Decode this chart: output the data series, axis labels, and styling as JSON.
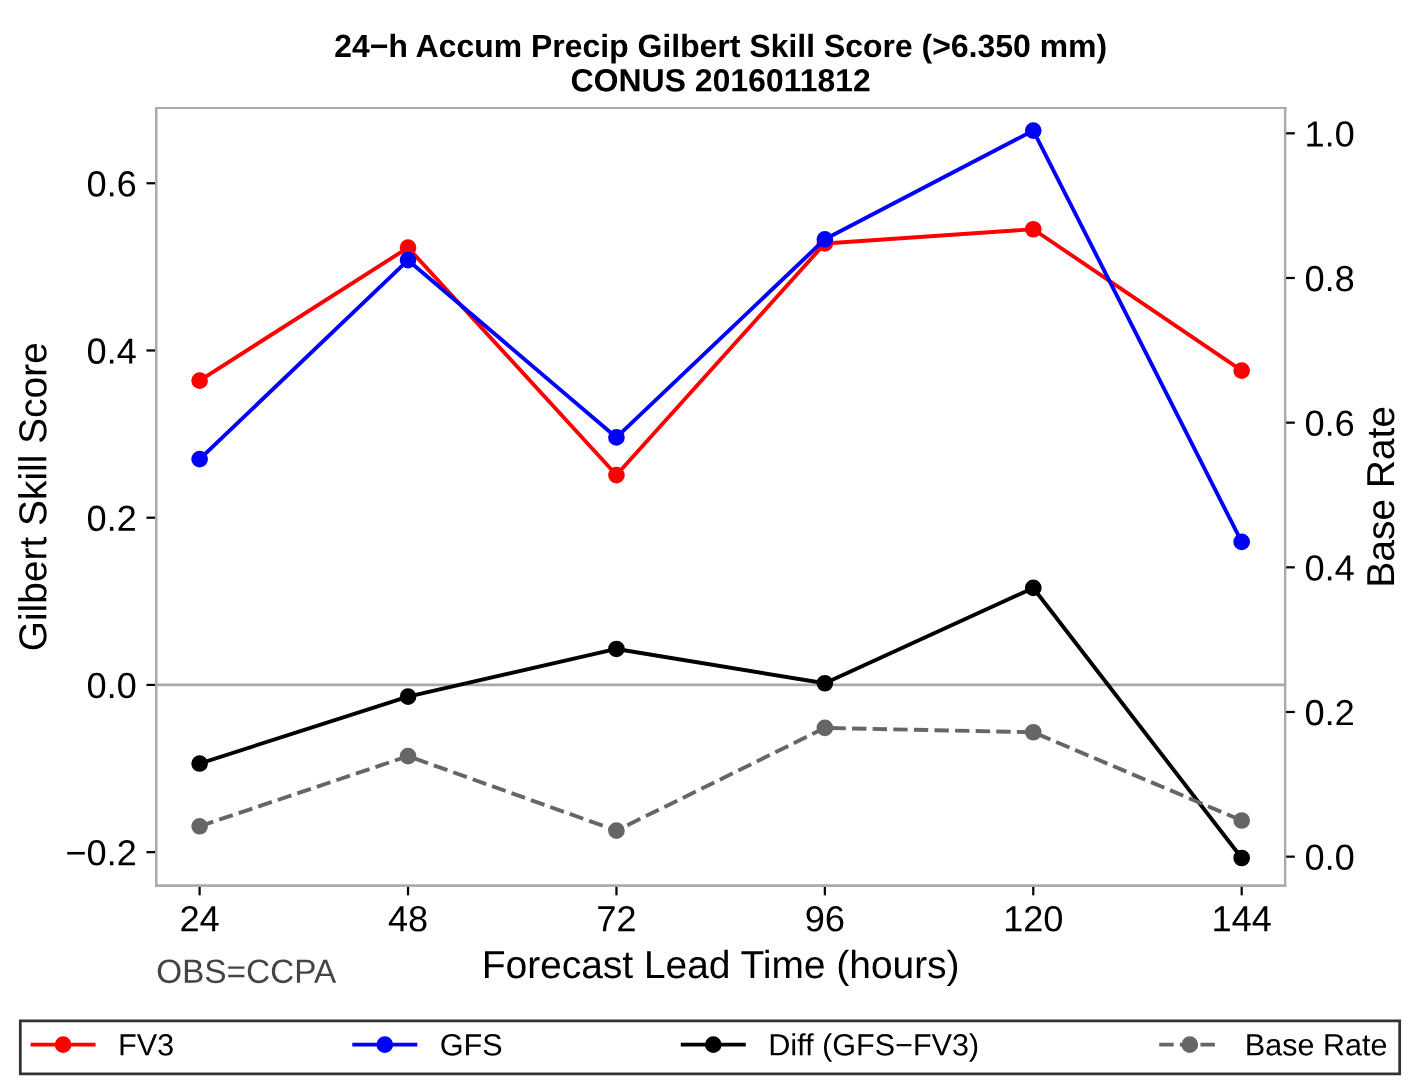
{
  "chart_data": {
    "type": "line",
    "title": "24−h Accum Precip Gilbert Skill Score (>6.350 mm)",
    "subtitle": "CONUS 2016011812",
    "xlabel": "Forecast Lead Time (hours)",
    "ylabel": "Gilbert Skill Score",
    "y2label": "Base Rate",
    "x": [
      24,
      48,
      72,
      96,
      120,
      144
    ],
    "series": [
      {
        "name": "FV3",
        "color": "#ff0000",
        "values": [
          0.364,
          0.523,
          0.251,
          0.528,
          0.545,
          0.376
        ]
      },
      {
        "name": "GFS",
        "color": "#0000ff",
        "values": [
          0.27,
          0.508,
          0.296,
          0.533,
          0.663,
          0.171
        ]
      },
      {
        "name": "Diff (GFS−FV3)",
        "color": "#000000",
        "values": [
          -0.094,
          -0.014,
          0.043,
          0.002,
          0.116,
          -0.207
        ]
      },
      {
        "name": "Base Rate",
        "color": "#666666",
        "axis": "y2",
        "line_style": "dashed",
        "values": [
          0.042,
          0.139,
          0.036,
          0.178,
          0.172,
          0.05
        ]
      }
    ],
    "xlim": [
      19,
      149
    ],
    "xticks": [
      24,
      48,
      72,
      96,
      120,
      144
    ],
    "ylim": [
      -0.24,
      0.69
    ],
    "yticks": [
      -0.2,
      {
        "value": 0,
        "label": "0.0"
      },
      0.2,
      0.4,
      0.6
    ],
    "y2lim": [
      -0.04,
      1.035
    ],
    "y2ticks": [
      {
        "value": 0,
        "label": "0.0"
      },
      0.2,
      0.4,
      0.6,
      0.8,
      {
        "value": 1,
        "label": "1.0"
      }
    ],
    "ref_lines": [
      {
        "axis": "y",
        "value": 0,
        "color": "#aaaaaa"
      }
    ],
    "annotations": [
      "OBS=CCPA"
    ],
    "marker": "circle",
    "line_style": "solid",
    "legend": "bottom",
    "grid": false
  }
}
